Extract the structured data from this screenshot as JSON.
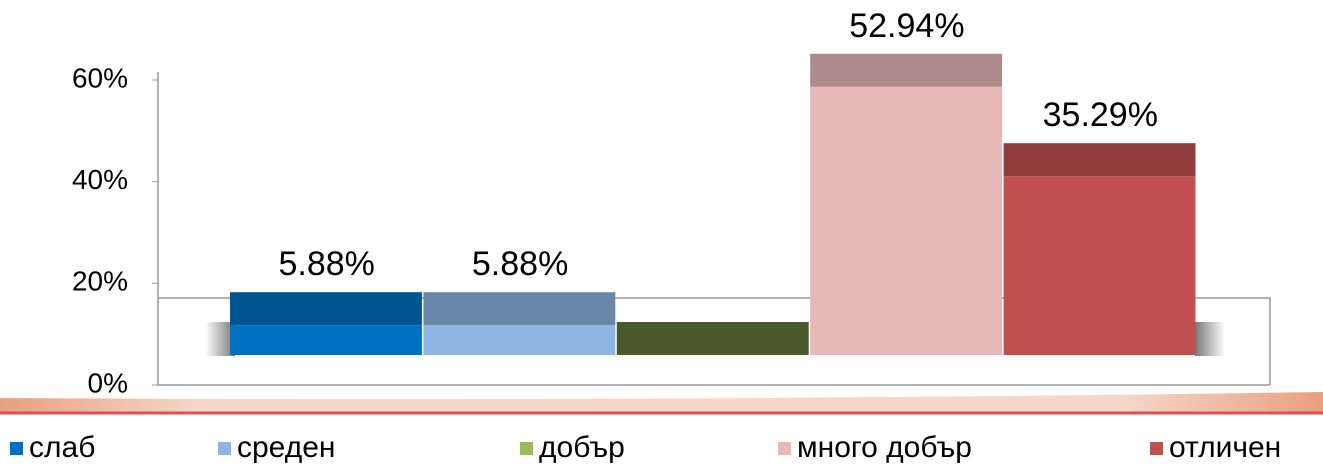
{
  "chart_data": {
    "type": "bar",
    "series": [
      {
        "name": "слаб",
        "color": "#0070c0",
        "values": [
          5.88
        ],
        "value_labels": [
          "5.88%"
        ]
      },
      {
        "name": "среден",
        "color": "#8db4e2",
        "values": [
          5.88
        ],
        "value_labels": [
          "5.88%"
        ]
      },
      {
        "name": "добър",
        "color": "#9bbb59",
        "values": [
          0
        ]
      },
      {
        "name": "много добър",
        "color": "#e6b9b8",
        "values": [
          52.94
        ],
        "value_labels": [
          "52.94%"
        ]
      },
      {
        "name": "отличен",
        "color": "#c0504d",
        "values": [
          35.29
        ],
        "value_labels": [
          "35.29%"
        ]
      }
    ],
    "ylim": [
      0,
      60
    ],
    "yticks": [
      {
        "value": 0,
        "label": "0%"
      },
      {
        "value": 20,
        "label": "20%"
      },
      {
        "value": 40,
        "label": "40%"
      },
      {
        "value": 60,
        "label": "60%"
      }
    ],
    "legend": "bottom"
  }
}
